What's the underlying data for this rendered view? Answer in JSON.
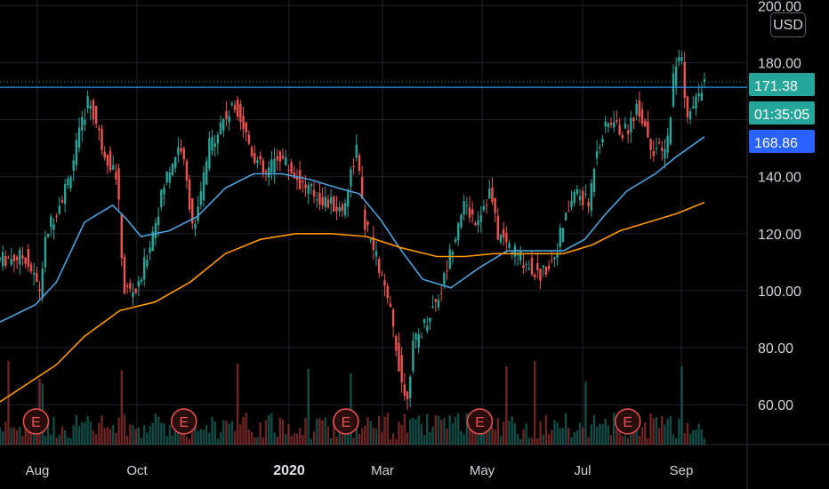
{
  "currency_label": "USD",
  "chart_data": {
    "type": "candlestick",
    "y_axis": {
      "ticks": [
        60,
        80,
        100,
        120,
        140,
        160,
        180,
        200
      ],
      "range": [
        46,
        202
      ],
      "labels": [
        "60.00",
        "80.00",
        "100.00",
        "120.00",
        "140.00",
        "",
        "180.00",
        "200.00"
      ]
    },
    "x_axis": {
      "labels": [
        "Aug",
        "Oct",
        "2020",
        "Mar",
        "May",
        "Jul",
        "Sep"
      ]
    },
    "price_badges": [
      {
        "label": "171.38",
        "value": 171.38,
        "color": "#26a69a"
      },
      {
        "label": "01:35:05",
        "color": "#26a69a"
      },
      {
        "label": "168.86",
        "value": 168.86,
        "color": "#2962ff"
      }
    ],
    "horizontal_line": {
      "value": 171.38,
      "color": "#2196f3"
    },
    "earnings_markers": [
      {
        "label": "E",
        "x_frac": 0.07
      },
      {
        "label": "E",
        "x_frac": 0.28
      },
      {
        "label": "E",
        "x_frac": 0.51
      },
      {
        "label": "E",
        "x_frac": 0.7
      },
      {
        "label": "E",
        "x_frac": 0.91
      }
    ],
    "series": [
      {
        "name": "",
        "type": "ma",
        "color": "#4aa3df",
        "points": [
          [
            0,
            89
          ],
          [
            0.05,
            95
          ],
          [
            0.08,
            103
          ],
          [
            0.12,
            124
          ],
          [
            0.16,
            130
          ],
          [
            0.18,
            125
          ],
          [
            0.2,
            119
          ],
          [
            0.24,
            121
          ],
          [
            0.28,
            126
          ],
          [
            0.32,
            136
          ],
          [
            0.36,
            141
          ],
          [
            0.4,
            141
          ],
          [
            0.44,
            139
          ],
          [
            0.48,
            136
          ],
          [
            0.51,
            134
          ],
          [
            0.54,
            125
          ],
          [
            0.57,
            114
          ],
          [
            0.6,
            104
          ],
          [
            0.64,
            101
          ],
          [
            0.68,
            108
          ],
          [
            0.72,
            114
          ],
          [
            0.76,
            114
          ],
          [
            0.8,
            114
          ],
          [
            0.83,
            118
          ],
          [
            0.86,
            127
          ],
          [
            0.89,
            135
          ],
          [
            0.93,
            141
          ],
          [
            0.96,
            147
          ],
          [
            1.0,
            154
          ]
        ]
      },
      {
        "name": "",
        "type": "ma",
        "color": "#ff9800",
        "points": [
          [
            0,
            61
          ],
          [
            0.08,
            74
          ],
          [
            0.12,
            84
          ],
          [
            0.17,
            93
          ],
          [
            0.22,
            96
          ],
          [
            0.27,
            103
          ],
          [
            0.32,
            113
          ],
          [
            0.37,
            118
          ],
          [
            0.42,
            120
          ],
          [
            0.47,
            120
          ],
          [
            0.52,
            119
          ],
          [
            0.57,
            115
          ],
          [
            0.62,
            112
          ],
          [
            0.66,
            112
          ],
          [
            0.7,
            113
          ],
          [
            0.75,
            113
          ],
          [
            0.8,
            113
          ],
          [
            0.84,
            116
          ],
          [
            0.88,
            121
          ],
          [
            0.92,
            124
          ],
          [
            0.96,
            127
          ],
          [
            1.0,
            131
          ]
        ]
      }
    ]
  }
}
